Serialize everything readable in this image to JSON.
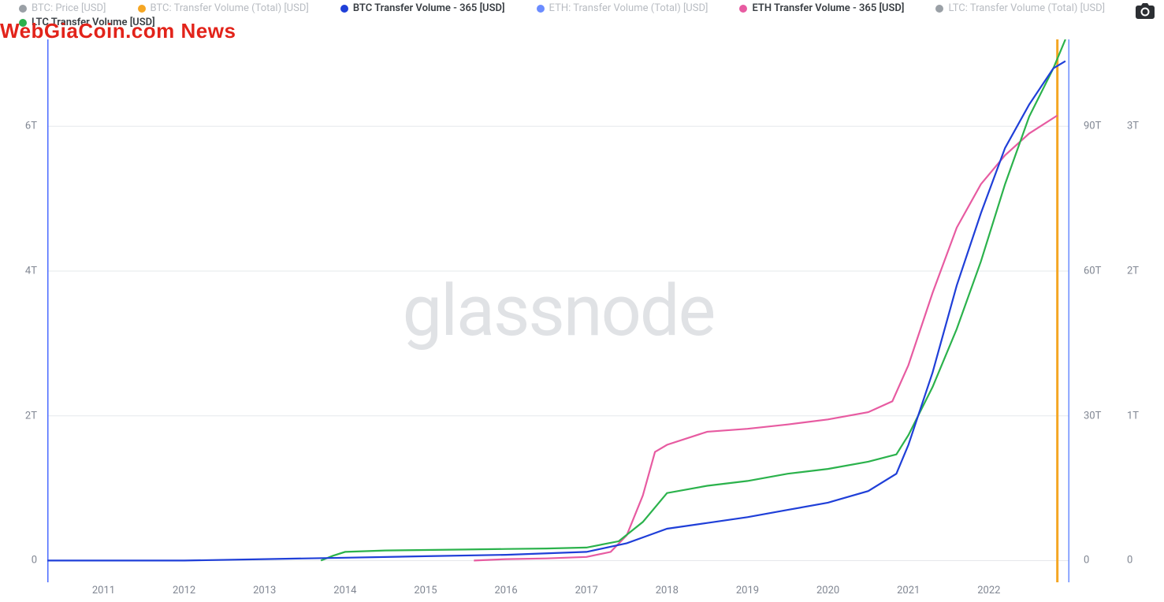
{
  "overlay": {
    "text": "WebGiaCoin.com News",
    "color": "#e2231a",
    "fontsize": 26
  },
  "watermark": {
    "text": "glassnode",
    "color": "#c8cbd0",
    "fontsize": 90
  },
  "camera_icon": {
    "name": "camera-icon"
  },
  "legend": {
    "items": [
      {
        "label": "BTC: Price [USD]",
        "color": "#9aa0a6",
        "enabled": false
      },
      {
        "label": "BTC: Transfer Volume (Total) [USD]",
        "color": "#f5a623",
        "enabled": false
      },
      {
        "label": "BTC Transfer Volume - 365 [USD]",
        "color": "#1f3fd8",
        "enabled": true
      },
      {
        "label": "ETH: Transfer Volume (Total) [USD]",
        "color": "#6b8cff",
        "enabled": false
      },
      {
        "label": "ETH Transfer Volume - 365 [USD]",
        "color": "#e75ba1",
        "enabled": true
      },
      {
        "label": "LTC: Transfer Volume (Total) [USD]",
        "color": "#9aa0a6",
        "enabled": false
      },
      {
        "label": "LTC Transfer Volume [USD]",
        "color": "#2bb24c",
        "enabled": true
      }
    ]
  },
  "chart": {
    "type": "line",
    "background_color": "#ffffff",
    "grid_color": "#e6e8eb",
    "x": {
      "min": 2010.3,
      "max": 2023.0,
      "ticks": [
        2011,
        2012,
        2013,
        2014,
        2015,
        2016,
        2017,
        2018,
        2019,
        2020,
        2021,
        2022
      ]
    },
    "y_left": {
      "min": -0.3,
      "max": 7.2,
      "ticks": [
        0,
        2,
        4,
        6
      ],
      "tick_labels": [
        "0",
        "2T",
        "4T",
        "6T"
      ]
    },
    "y_right1": {
      "min": -4.5,
      "max": 108,
      "ticks": [
        0,
        30,
        60,
        90
      ],
      "tick_labels": [
        "0",
        "30T",
        "60T",
        "90T"
      ]
    },
    "y_right2": {
      "min": -0.15,
      "max": 3.6,
      "ticks": [
        0,
        1,
        2,
        3
      ],
      "tick_labels": [
        "0",
        "1T",
        "2T",
        "3T"
      ]
    },
    "left_bar": {
      "x": 2010.3,
      "color": "#4b6bff"
    },
    "right_bar1": {
      "x": 2022.85,
      "color": "#f5a623"
    },
    "right_bar2": {
      "x": 2023.0,
      "color": "#6b8cff"
    },
    "series": [
      {
        "name": "eth-365",
        "axis": "left",
        "color": "#e75ba1",
        "line_width": 2.2,
        "points": [
          [
            2015.6,
            0
          ],
          [
            2016.0,
            0.02
          ],
          [
            2016.5,
            0.03
          ],
          [
            2017.0,
            0.05
          ],
          [
            2017.3,
            0.12
          ],
          [
            2017.5,
            0.35
          ],
          [
            2017.7,
            0.9
          ],
          [
            2017.85,
            1.5
          ],
          [
            2018.0,
            1.6
          ],
          [
            2018.5,
            1.78
          ],
          [
            2019.0,
            1.82
          ],
          [
            2019.5,
            1.88
          ],
          [
            2020.0,
            1.95
          ],
          [
            2020.5,
            2.05
          ],
          [
            2020.8,
            2.2
          ],
          [
            2021.0,
            2.7
          ],
          [
            2021.3,
            3.7
          ],
          [
            2021.6,
            4.6
          ],
          [
            2021.9,
            5.2
          ],
          [
            2022.2,
            5.6
          ],
          [
            2022.5,
            5.9
          ],
          [
            2022.85,
            6.15
          ]
        ]
      },
      {
        "name": "ltc-cum",
        "axis": "right1",
        "color": "#2bb24c",
        "line_width": 2.2,
        "points": [
          [
            2013.7,
            0
          ],
          [
            2013.85,
            1.0
          ],
          [
            2014.0,
            1.8
          ],
          [
            2014.5,
            2.1
          ],
          [
            2015.0,
            2.2
          ],
          [
            2015.5,
            2.3
          ],
          [
            2016.0,
            2.4
          ],
          [
            2016.5,
            2.5
          ],
          [
            2017.0,
            2.7
          ],
          [
            2017.4,
            4.0
          ],
          [
            2017.7,
            8.0
          ],
          [
            2017.9,
            12
          ],
          [
            2018.0,
            14
          ],
          [
            2018.5,
            15.5
          ],
          [
            2019.0,
            16.5
          ],
          [
            2019.5,
            18
          ],
          [
            2020.0,
            19
          ],
          [
            2020.5,
            20.5
          ],
          [
            2020.85,
            22
          ],
          [
            2021.0,
            26
          ],
          [
            2021.3,
            36
          ],
          [
            2021.6,
            48
          ],
          [
            2021.9,
            62
          ],
          [
            2022.2,
            78
          ],
          [
            2022.5,
            92
          ],
          [
            2022.8,
            102
          ],
          [
            2022.95,
            108
          ]
        ]
      },
      {
        "name": "btc-365",
        "axis": "right2",
        "color": "#1f3fd8",
        "line_width": 2.2,
        "points": [
          [
            2010.3,
            0
          ],
          [
            2012.0,
            0
          ],
          [
            2013.0,
            0.01
          ],
          [
            2014.0,
            0.02
          ],
          [
            2015.0,
            0.03
          ],
          [
            2016.0,
            0.04
          ],
          [
            2017.0,
            0.06
          ],
          [
            2017.5,
            0.12
          ],
          [
            2017.8,
            0.18
          ],
          [
            2018.0,
            0.22
          ],
          [
            2018.5,
            0.26
          ],
          [
            2019.0,
            0.3
          ],
          [
            2019.5,
            0.35
          ],
          [
            2020.0,
            0.4
          ],
          [
            2020.5,
            0.48
          ],
          [
            2020.85,
            0.6
          ],
          [
            2021.0,
            0.8
          ],
          [
            2021.3,
            1.3
          ],
          [
            2021.6,
            1.9
          ],
          [
            2021.9,
            2.4
          ],
          [
            2022.2,
            2.85
          ],
          [
            2022.5,
            3.15
          ],
          [
            2022.8,
            3.4
          ],
          [
            2022.95,
            3.45
          ]
        ]
      }
    ]
  }
}
